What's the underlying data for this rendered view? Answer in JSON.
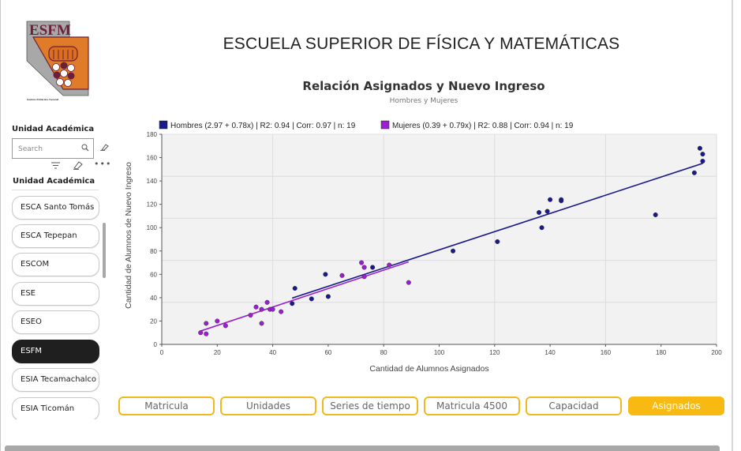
{
  "header": {
    "school_title": "ESCUELA SUPERIOR DE FÍSICA Y MATEMÁTICAS",
    "logo_text": "ESFM",
    "logo_caption": "Instituto Politécnico Nacional"
  },
  "chart_heading": {
    "title": "Relación Asignados y Nuevo Ingreso",
    "subtitle": "Hombres y Mujeres"
  },
  "slicer": {
    "header": "Unidad Académica",
    "list_header": "Unidad Académica",
    "search_placeholder": "Search",
    "items": [
      {
        "label": "ESCA Santo Tomás",
        "selected": false
      },
      {
        "label": "ESCA Tepepan",
        "selected": false
      },
      {
        "label": "ESCOM",
        "selected": false
      },
      {
        "label": "ESE",
        "selected": false
      },
      {
        "label": "ESEO",
        "selected": false
      },
      {
        "label": "ESFM",
        "selected": true
      },
      {
        "label": "ESIA Tecamachalco",
        "selected": false
      },
      {
        "label": "ESIA Ticomán",
        "selected": false
      }
    ]
  },
  "chart_data": {
    "type": "scatter",
    "xlabel": "Cantidad de Alumnos Asignados",
    "ylabel": "Cantidad de Alumnos de Nuevo Ingreso",
    "xlim": [
      0,
      200
    ],
    "ylim": [
      0,
      180
    ],
    "xticks": [
      0,
      20,
      40,
      60,
      80,
      100,
      120,
      140,
      160,
      180,
      200
    ],
    "yticks": [
      0,
      20,
      40,
      60,
      80,
      100,
      120,
      140,
      160,
      180
    ],
    "grid": true,
    "legend_position": "top-left",
    "series": [
      {
        "name": "Hombres (2.97 + 0.78x) | R2: 0.94 | Corr: 0.97 | n: 19",
        "color": "#1a1a8c",
        "trend": {
          "intercept": 2.97,
          "slope": 0.78
        },
        "points": [
          {
            "x": 194,
            "y": 168
          },
          {
            "x": 195,
            "y": 163
          },
          {
            "x": 195,
            "y": 157
          },
          {
            "x": 192,
            "y": 147
          },
          {
            "x": 140,
            "y": 124
          },
          {
            "x": 144,
            "y": 124
          },
          {
            "x": 144,
            "y": 123
          },
          {
            "x": 136,
            "y": 113
          },
          {
            "x": 139,
            "y": 114
          },
          {
            "x": 137,
            "y": 100
          },
          {
            "x": 178,
            "y": 111
          },
          {
            "x": 121,
            "y": 88
          },
          {
            "x": 105,
            "y": 80
          },
          {
            "x": 76,
            "y": 66
          },
          {
            "x": 59,
            "y": 60
          },
          {
            "x": 48,
            "y": 48
          },
          {
            "x": 60,
            "y": 41
          },
          {
            "x": 54,
            "y": 39
          },
          {
            "x": 47,
            "y": 35
          }
        ]
      },
      {
        "name": "Mujeres (0.39 + 0.79x) | R2: 0.88 | Corr: 0.94 | n: 19",
        "color": "#9b1fd1",
        "trend": {
          "intercept": 0.39,
          "slope": 0.79
        },
        "points": [
          {
            "x": 82,
            "y": 68
          },
          {
            "x": 72,
            "y": 70
          },
          {
            "x": 73,
            "y": 66
          },
          {
            "x": 65,
            "y": 59
          },
          {
            "x": 73,
            "y": 58
          },
          {
            "x": 89,
            "y": 53
          },
          {
            "x": 38,
            "y": 36
          },
          {
            "x": 34,
            "y": 32
          },
          {
            "x": 36,
            "y": 30
          },
          {
            "x": 39,
            "y": 30
          },
          {
            "x": 40,
            "y": 30
          },
          {
            "x": 43,
            "y": 28
          },
          {
            "x": 32,
            "y": 25
          },
          {
            "x": 20,
            "y": 20
          },
          {
            "x": 16,
            "y": 18
          },
          {
            "x": 23,
            "y": 16
          },
          {
            "x": 36,
            "y": 18
          },
          {
            "x": 14,
            "y": 10
          },
          {
            "x": 16,
            "y": 9
          }
        ]
      }
    ]
  },
  "nav": {
    "buttons": [
      {
        "label": "Matricula",
        "active": false
      },
      {
        "label": "Unidades",
        "active": false
      },
      {
        "label": "Series de tiempo",
        "active": false
      },
      {
        "label": "Matricula 4500",
        "active": false
      },
      {
        "label": "Capacidad",
        "active": false
      },
      {
        "label": "Asignados",
        "active": true
      }
    ]
  },
  "colors": {
    "accent": "#f8b912",
    "selected_item": "#1f1f1f",
    "logo_orange": "#e07b2a",
    "logo_maroon": "#6b1f3a"
  }
}
